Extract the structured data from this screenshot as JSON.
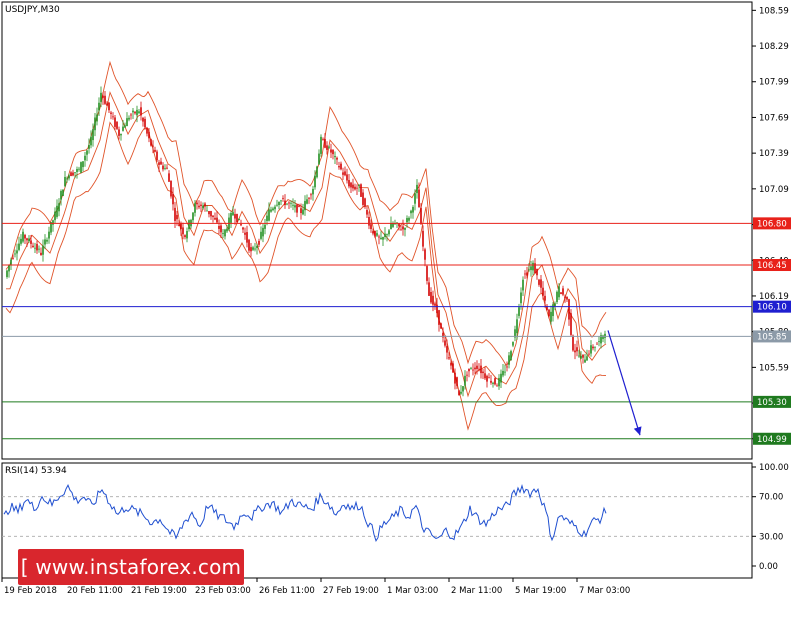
{
  "chart_data": [
    {
      "type": "candlestick",
      "title": "USDJPY,M30",
      "y_ticks": [
        "108.59",
        "108.29",
        "107.99",
        "107.69",
        "107.39",
        "107.09",
        "106.79",
        "106.49",
        "106.19",
        "105.89",
        "105.59",
        "105.29",
        "104.99"
      ],
      "ylim": [
        104.82,
        108.66
      ],
      "x_ticks": [
        "19 Feb 2018",
        "20 Feb 11:00",
        "21 Feb 19:00",
        "23 Feb 03:00",
        "26 Feb 11:00",
        "27 Feb 19:00",
        "1 Mar 03:00",
        "2 Mar 11:00",
        "5 Mar 19:00",
        "7 Mar 03:00"
      ],
      "price_path": [
        [
          0,
          106.25
        ],
        [
          10,
          106.5
        ],
        [
          22,
          106.7
        ],
        [
          40,
          106.55
        ],
        [
          55,
          106.9
        ],
        [
          65,
          107.2
        ],
        [
          78,
          107.25
        ],
        [
          90,
          107.5
        ],
        [
          100,
          107.9
        ],
        [
          108,
          107.75
        ],
        [
          118,
          107.55
        ],
        [
          128,
          107.7
        ],
        [
          138,
          107.75
        ],
        [
          148,
          107.5
        ],
        [
          158,
          107.3
        ],
        [
          166,
          107.25
        ],
        [
          174,
          106.85
        ],
        [
          184,
          106.7
        ],
        [
          194,
          106.95
        ],
        [
          202,
          106.95
        ],
        [
          212,
          106.85
        ],
        [
          222,
          106.7
        ],
        [
          232,
          106.9
        ],
        [
          242,
          106.75
        ],
        [
          250,
          106.55
        ],
        [
          258,
          106.65
        ],
        [
          268,
          106.9
        ],
        [
          278,
          107.0
        ],
        [
          290,
          106.95
        ],
        [
          300,
          106.9
        ],
        [
          312,
          107.1
        ],
        [
          320,
          107.5
        ],
        [
          330,
          107.4
        ],
        [
          340,
          107.25
        ],
        [
          350,
          107.1
        ],
        [
          358,
          107.1
        ],
        [
          370,
          106.75
        ],
        [
          380,
          106.65
        ],
        [
          392,
          106.8
        ],
        [
          402,
          106.75
        ],
        [
          410,
          106.9
        ],
        [
          416,
          107.1
        ],
        [
          422,
          106.6
        ],
        [
          428,
          106.2
        ],
        [
          436,
          106.05
        ],
        [
          444,
          105.75
        ],
        [
          452,
          105.55
        ],
        [
          458,
          105.35
        ],
        [
          466,
          105.55
        ],
        [
          476,
          105.6
        ],
        [
          486,
          105.5
        ],
        [
          496,
          105.45
        ],
        [
          506,
          105.6
        ],
        [
          514,
          105.9
        ],
        [
          522,
          106.35
        ],
        [
          532,
          106.45
        ],
        [
          540,
          106.25
        ],
        [
          548,
          106.0
        ],
        [
          558,
          106.25
        ],
        [
          566,
          106.15
        ],
        [
          572,
          105.75
        ],
        [
          582,
          105.65
        ],
        [
          590,
          105.75
        ],
        [
          598,
          105.8
        ],
        [
          604,
          105.9
        ]
      ],
      "levels": [
        {
          "value": "106.80",
          "price": 106.8,
          "color": "#e8211a",
          "text_color": "#ffffff"
        },
        {
          "value": "106.45",
          "price": 106.45,
          "color": "#e8211a",
          "text_color": "#ffffff"
        },
        {
          "value": "106.10",
          "price": 106.1,
          "color": "#1f1fd0",
          "text_color": "#ffffff"
        },
        {
          "value": "105.85",
          "price": 105.85,
          "color": "#8c9aa8",
          "text_color": "#ffffff"
        },
        {
          "value": "105.30",
          "price": 105.3,
          "color": "#1f7a1f",
          "text_color": "#ffffff"
        },
        {
          "value": "104.99",
          "price": 104.99,
          "color": "#1f7a1f",
          "text_color": "#ffffff"
        }
      ],
      "forecast_arrow": {
        "from_price": 105.9,
        "to_price": 105.02,
        "color": "#1f1fd0"
      },
      "colors": {
        "bull": "#1f8f1f",
        "bear": "#d40000",
        "bands": "#e0542a"
      }
    },
    {
      "type": "line",
      "title": "RSI(14) 53.94",
      "y_ticks": [
        "100.00",
        "70.00",
        "30.00",
        "0.00"
      ],
      "ylim": [
        0,
        100
      ],
      "levels": [
        70,
        30
      ],
      "rsi_path": [
        [
          0,
          45
        ],
        [
          8,
          60
        ],
        [
          16,
          55
        ],
        [
          24,
          68
        ],
        [
          32,
          58
        ],
        [
          40,
          70
        ],
        [
          50,
          62
        ],
        [
          58,
          72
        ],
        [
          66,
          80
        ],
        [
          74,
          66
        ],
        [
          82,
          70
        ],
        [
          90,
          60
        ],
        [
          100,
          78
        ],
        [
          108,
          64
        ],
        [
          116,
          52
        ],
        [
          124,
          60
        ],
        [
          132,
          56
        ],
        [
          140,
          52
        ],
        [
          150,
          44
        ],
        [
          158,
          48
        ],
        [
          166,
          36
        ],
        [
          174,
          28
        ],
        [
          182,
          44
        ],
        [
          190,
          54
        ],
        [
          198,
          40
        ],
        [
          206,
          62
        ],
        [
          214,
          52
        ],
        [
          222,
          48
        ],
        [
          232,
          40
        ],
        [
          242,
          55
        ],
        [
          250,
          50
        ],
        [
          260,
          60
        ],
        [
          270,
          64
        ],
        [
          280,
          54
        ],
        [
          290,
          66
        ],
        [
          300,
          60
        ],
        [
          310,
          58
        ],
        [
          318,
          70
        ],
        [
          326,
          64
        ],
        [
          334,
          52
        ],
        [
          342,
          64
        ],
        [
          350,
          58
        ],
        [
          358,
          62
        ],
        [
          366,
          44
        ],
        [
          374,
          30
        ],
        [
          382,
          42
        ],
        [
          390,
          48
        ],
        [
          398,
          56
        ],
        [
          406,
          50
        ],
        [
          414,
          60
        ],
        [
          420,
          40
        ],
        [
          428,
          32
        ],
        [
          436,
          26
        ],
        [
          444,
          36
        ],
        [
          452,
          30
        ],
        [
          460,
          40
        ],
        [
          468,
          58
        ],
        [
          476,
          48
        ],
        [
          484,
          42
        ],
        [
          494,
          56
        ],
        [
          504,
          60
        ],
        [
          512,
          72
        ],
        [
          520,
          80
        ],
        [
          528,
          74
        ],
        [
          536,
          78
        ],
        [
          544,
          54
        ],
        [
          550,
          28
        ],
        [
          558,
          52
        ],
        [
          566,
          44
        ],
        [
          574,
          40
        ],
        [
          582,
          32
        ],
        [
          590,
          44
        ],
        [
          598,
          48
        ],
        [
          604,
          56
        ]
      ],
      "colors": {
        "line": "#1f4fd0"
      }
    }
  ],
  "watermark": "[ www.instaforex.com ]"
}
